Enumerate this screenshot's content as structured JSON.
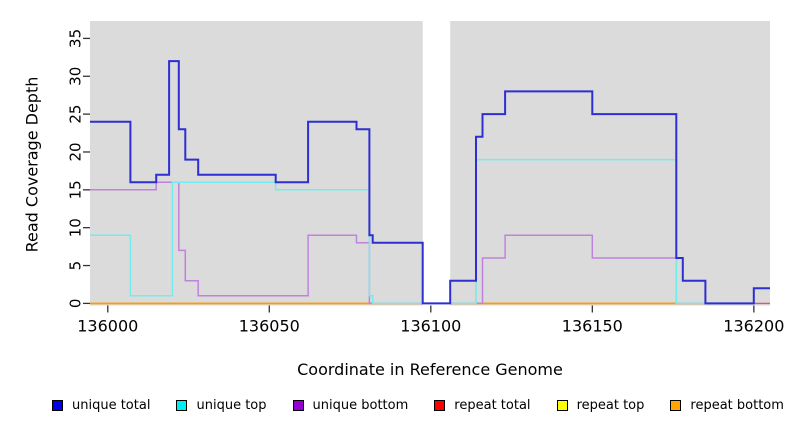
{
  "figure": {
    "xlabel": "Coordinate in Reference Genome",
    "ylabel": "Read Coverage Depth"
  },
  "chart_data": {
    "type": "line",
    "subtype": "step",
    "title": "",
    "xlabel": "Coordinate in Reference Genome",
    "ylabel": "Read Coverage Depth",
    "xlim": [
      135994.5,
      136205
    ],
    "ylim": [
      0,
      37.3
    ],
    "xticks": [
      136000,
      136050,
      136100,
      136150,
      136200
    ],
    "yticks": [
      0,
      5,
      10,
      15,
      20,
      25,
      30,
      35
    ],
    "grid": false,
    "panel_bg": "#DBDBDB",
    "tick_color": "#333333",
    "gap_region": {
      "from": 136097.5,
      "to": 136106,
      "color": "#FFFFFF"
    },
    "series": [
      {
        "name": "repeat total",
        "line_color": "#E05570",
        "width": 1.4,
        "above_gap": false,
        "steps": [
          [
            135994.5,
            0
          ]
        ],
        "end": 136205
      },
      {
        "name": "repeat top",
        "line_color": "#FFFF00",
        "width": 1.4,
        "above_gap": false,
        "steps": [
          [
            135994.5,
            0
          ]
        ],
        "end": 136185
      },
      {
        "name": "repeat bottom",
        "line_color": "#FF9912",
        "width": 1.6,
        "above_gap": false,
        "steps": [
          [
            135994.5,
            0
          ]
        ],
        "end": 136185
      },
      {
        "name": "unique bottom",
        "line_color": "#C083DD",
        "width": 1.5,
        "above_gap": false,
        "steps": [
          [
            135994.5,
            15
          ],
          [
            136015,
            16
          ],
          [
            136022,
            7
          ],
          [
            136024,
            3
          ],
          [
            136028,
            1
          ],
          [
            136062,
            9
          ],
          [
            136077,
            8
          ],
          [
            136081,
            0
          ],
          [
            136116,
            6
          ],
          [
            136123,
            9
          ],
          [
            136150,
            6
          ],
          [
            136176,
            0
          ]
        ],
        "end": 136200
      },
      {
        "name": "unique top",
        "line_color": "#72EDED",
        "width": 1.5,
        "above_gap": false,
        "steps": [
          [
            135994.5,
            9
          ],
          [
            136007,
            1
          ],
          [
            136020,
            16
          ],
          [
            136052,
            15
          ],
          [
            136081,
            1
          ],
          [
            136082,
            0
          ],
          [
            136114,
            19
          ],
          [
            136176,
            0
          ]
        ],
        "end": 136200
      },
      {
        "name": "unique total",
        "line_color": "#2D2FD0",
        "width": 2,
        "above_gap": true,
        "steps": [
          [
            135994.5,
            24
          ],
          [
            136007,
            16
          ],
          [
            136015,
            17
          ],
          [
            136019,
            32
          ],
          [
            136022,
            23
          ],
          [
            136024,
            19
          ],
          [
            136028,
            17
          ],
          [
            136052,
            16
          ],
          [
            136062,
            24
          ],
          [
            136077,
            23
          ],
          [
            136081,
            9
          ],
          [
            136082,
            8
          ],
          [
            136097.5,
            0
          ],
          [
            136106,
            3
          ],
          [
            136114,
            22
          ],
          [
            136116,
            25
          ],
          [
            136123,
            28
          ],
          [
            136150,
            25
          ],
          [
            136176,
            6
          ],
          [
            136178,
            3
          ],
          [
            136185,
            0
          ],
          [
            136200,
            2
          ]
        ],
        "end": 136205
      }
    ]
  },
  "legend": {
    "items": [
      {
        "label": "unique total",
        "color": "#0000E0"
      },
      {
        "label": "unique top",
        "color": "#00EEEE"
      },
      {
        "label": "unique bottom",
        "color": "#9400D3"
      },
      {
        "label": "repeat total",
        "color": "#FF0000"
      },
      {
        "label": "repeat top",
        "color": "#FFFF00"
      },
      {
        "label": "repeat bottom",
        "color": "#FFA500"
      }
    ]
  }
}
